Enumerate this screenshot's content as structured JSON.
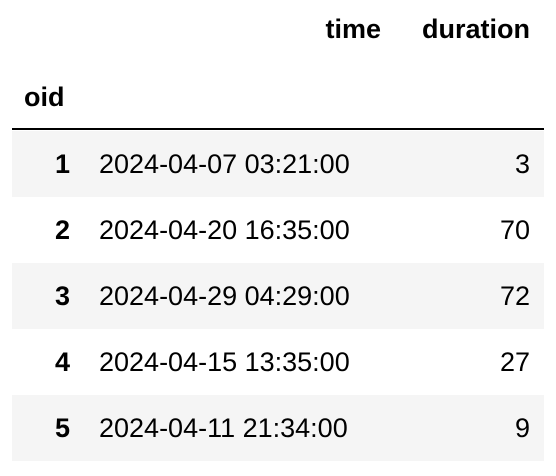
{
  "table": {
    "columns": [
      "time",
      "duration"
    ],
    "index_name": "oid",
    "rows": [
      {
        "oid": "1",
        "time": "2024-04-07 03:21:00",
        "duration": "3"
      },
      {
        "oid": "2",
        "time": "2024-04-20 16:35:00",
        "duration": "70"
      },
      {
        "oid": "3",
        "time": "2024-04-29 04:29:00",
        "duration": "72"
      },
      {
        "oid": "4",
        "time": "2024-04-15 13:35:00",
        "duration": "27"
      },
      {
        "oid": "5",
        "time": "2024-04-11 21:34:00",
        "duration": "9"
      }
    ]
  }
}
